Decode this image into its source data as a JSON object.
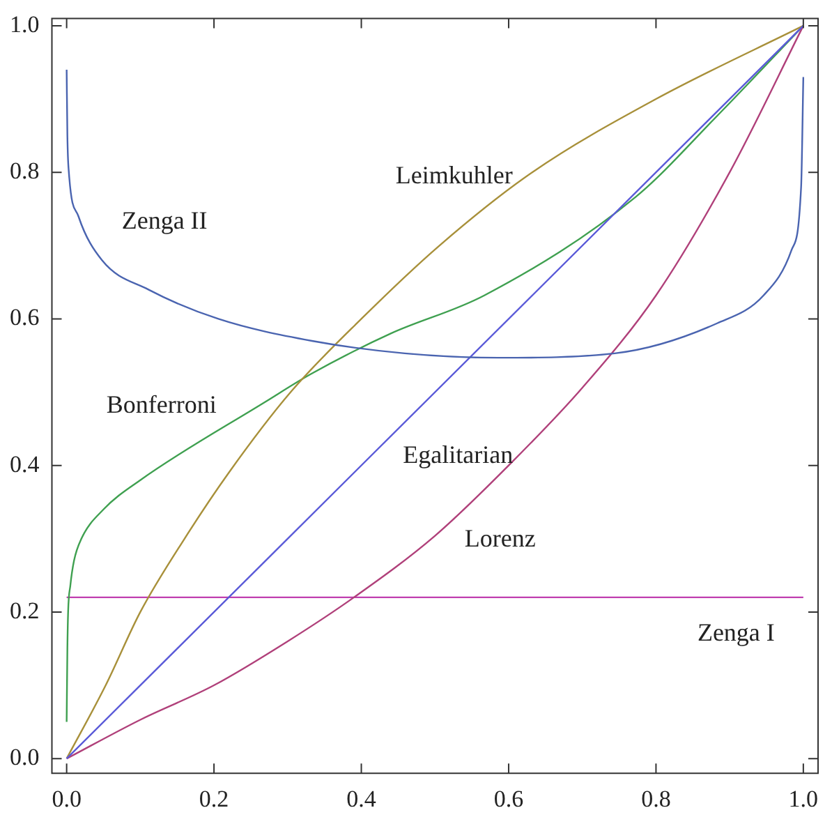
{
  "chart_data": {
    "type": "line",
    "xlim": [
      -0.02,
      1.02
    ],
    "ylim": [
      -0.02,
      1.01
    ],
    "xticks": [
      {
        "value": 0,
        "label": "0.0"
      },
      {
        "value": 0.2,
        "label": "0.2"
      },
      {
        "value": 0.4,
        "label": "0.4"
      },
      {
        "value": 0.6,
        "label": "0.6"
      },
      {
        "value": 0.8,
        "label": "0.8"
      },
      {
        "value": 1,
        "label": "1.0"
      }
    ],
    "yticks": [
      {
        "value": 0,
        "label": "0.0"
      },
      {
        "value": 0.2,
        "label": "0.2"
      },
      {
        "value": 0.4,
        "label": "0.4"
      },
      {
        "value": 0.6,
        "label": "0.6"
      },
      {
        "value": 0.8,
        "label": "0.8"
      },
      {
        "value": 1,
        "label": "1.0"
      }
    ],
    "grid": false,
    "legend": false,
    "marker": "none",
    "line_style": "solid",
    "series": [
      {
        "name": "Zenga II",
        "color": "#4a64b0",
        "x": [
          0,
          0.001,
          0.003,
          0.016,
          0.048,
          0.111,
          0.206,
          0.333,
          0.459,
          0.586,
          0.744,
          0.883,
          0.946,
          0.984,
          0.997,
          1.0
        ],
        "values": [
          0.94,
          0.85,
          0.8,
          0.74,
          0.68,
          0.64,
          0.6,
          0.57,
          0.553,
          0.547,
          0.553,
          0.594,
          0.632,
          0.694,
          0.78,
          0.93
        ]
      },
      {
        "name": "Egalitarian",
        "color": "#5a5ad8",
        "x": [
          0,
          1
        ],
        "values": [
          0,
          1
        ]
      },
      {
        "name": "Lorenz",
        "color": "#b0407a",
        "x": [
          0,
          0.1,
          0.2,
          0.3,
          0.39,
          0.5,
          0.6,
          0.7,
          0.8,
          0.9,
          1
        ],
        "values": [
          0,
          0.053,
          0.1,
          0.16,
          0.22,
          0.304,
          0.4,
          0.506,
          0.632,
          0.8,
          1
        ]
      },
      {
        "name": "Leimkuhler",
        "color": "#a8903a",
        "x": [
          0,
          0.053,
          0.1,
          0.16,
          0.22,
          0.304,
          0.4,
          0.506,
          0.632,
          0.8,
          1
        ],
        "values": [
          0,
          0.1,
          0.2,
          0.3,
          0.39,
          0.5,
          0.6,
          0.7,
          0.8,
          0.9,
          1
        ]
      },
      {
        "name": "Bonferroni",
        "color": "#3fa050",
        "x": [
          0,
          0.001,
          0.002,
          0.005,
          0.01,
          0.02,
          0.05,
          0.1,
          0.27,
          0.332,
          0.44,
          0.567,
          0.772,
          0.883,
          1
        ],
        "values": [
          0.05,
          0.15,
          0.2,
          0.236,
          0.27,
          0.3,
          0.34,
          0.38,
          0.487,
          0.525,
          0.58,
          0.632,
          0.766,
          0.877,
          1
        ]
      },
      {
        "name": "Zenga I",
        "color": "#c040b0",
        "x": [
          0,
          1
        ],
        "values": [
          0.22,
          0.22
        ]
      }
    ]
  }
}
